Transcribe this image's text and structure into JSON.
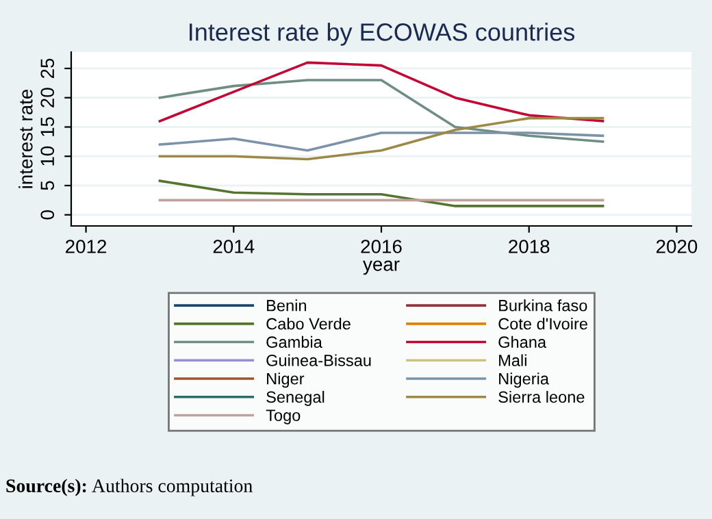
{
  "chart_data": {
    "type": "line",
    "title": "Interest rate by ECOWAS countries",
    "xlabel": "year",
    "ylabel": "interest rate",
    "x": [
      2013,
      2014,
      2015,
      2016,
      2017,
      2018,
      2019
    ],
    "xlim": [
      2011.8,
      2020.2
    ],
    "xticks": [
      2012,
      2014,
      2016,
      2018,
      2020
    ],
    "ylim": [
      -1.9,
      27.8
    ],
    "yticks": [
      0,
      5,
      10,
      15,
      20,
      25
    ],
    "grid": "y",
    "legend": "bottom",
    "annotations": [
      "Source(s): Authors computation"
    ],
    "series": [
      {
        "name": "Benin",
        "color": "#1a476f",
        "values": [
          null,
          null,
          null,
          null,
          null,
          null,
          null
        ]
      },
      {
        "name": "Burkina faso",
        "color": "#90353b",
        "values": [
          null,
          null,
          null,
          null,
          null,
          null,
          null
        ]
      },
      {
        "name": "Cabo Verde",
        "color": "#55752f",
        "values": [
          5.8,
          3.8,
          3.5,
          3.5,
          1.5,
          1.5,
          1.5
        ]
      },
      {
        "name": "Cote d'Ivoire",
        "color": "#e37e00",
        "values": [
          null,
          null,
          null,
          null,
          null,
          null,
          null
        ]
      },
      {
        "name": "Gambia",
        "color": "#6e8e84",
        "values": [
          20,
          22,
          23,
          23,
          15,
          13.5,
          12.5
        ]
      },
      {
        "name": "Ghana",
        "color": "#c10534",
        "values": [
          16,
          21,
          26,
          25.5,
          20,
          17,
          16
        ]
      },
      {
        "name": "Guinea-Bissau",
        "color": "#938dd2",
        "values": [
          null,
          null,
          null,
          null,
          null,
          null,
          null
        ]
      },
      {
        "name": "Mali",
        "color": "#cac27e",
        "values": [
          null,
          null,
          null,
          null,
          null,
          null,
          null
        ]
      },
      {
        "name": "Niger",
        "color": "#a0522d",
        "values": [
          null,
          null,
          null,
          null,
          null,
          null,
          null
        ]
      },
      {
        "name": "Nigeria",
        "color": "#7b92a8",
        "values": [
          12,
          13,
          11,
          14,
          14,
          14,
          13.5
        ]
      },
      {
        "name": "Senegal",
        "color": "#2d6d66",
        "values": [
          null,
          null,
          null,
          null,
          null,
          null,
          null
        ]
      },
      {
        "name": "Sierra leone",
        "color": "#9c8847",
        "values": [
          10,
          10,
          9.5,
          11,
          14.5,
          16.5,
          16.5
        ]
      },
      {
        "name": "Togo",
        "color": "#bfa19c",
        "values": [
          2.5,
          2.5,
          2.5,
          2.5,
          2.5,
          2.5,
          2.5
        ]
      }
    ]
  }
}
